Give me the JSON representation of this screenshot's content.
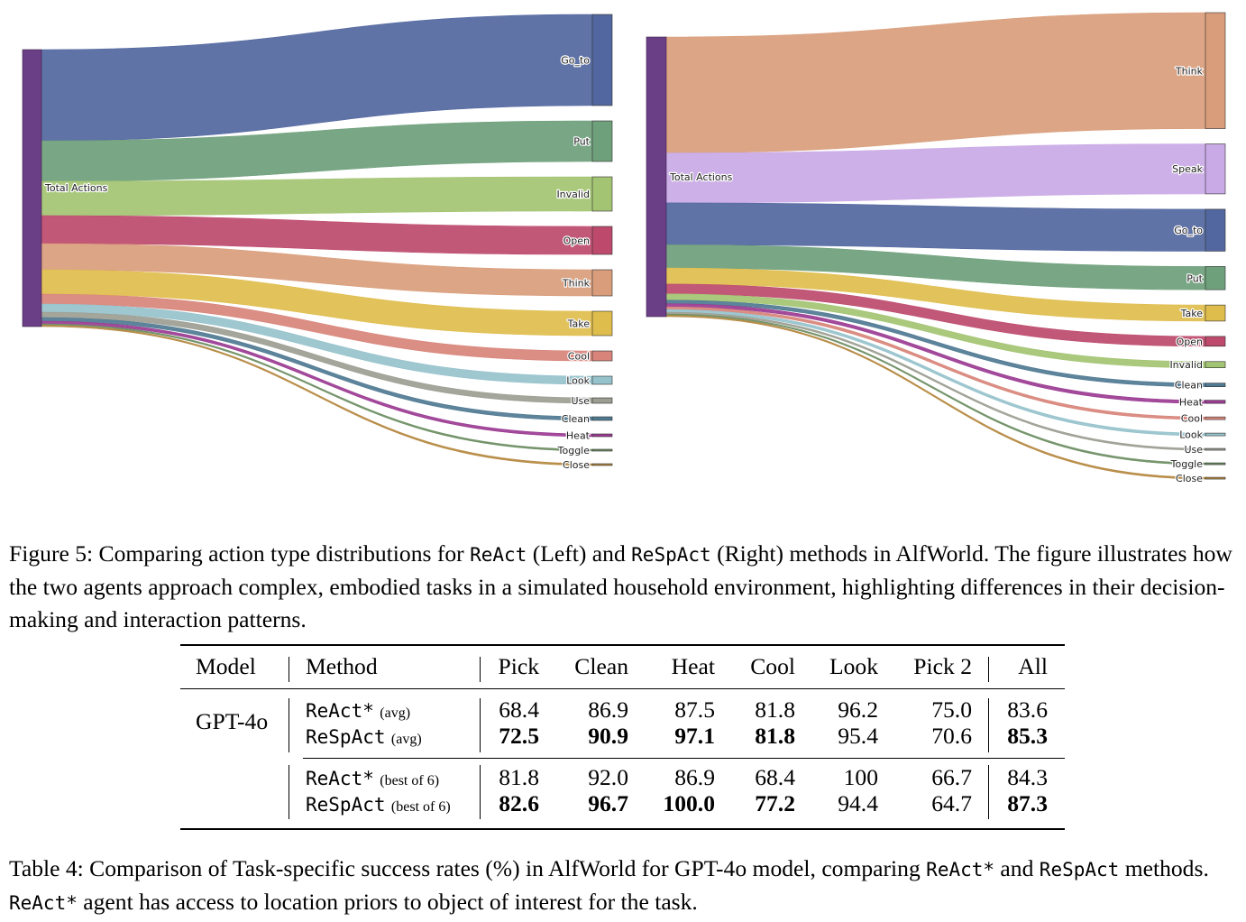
{
  "figure": {
    "left_panel": {
      "method": "ReAct",
      "source": "Total Actions",
      "color": "#6b3f86",
      "flows": [
        {
          "label": "Go_to",
          "value": 101,
          "color": "#52679f"
        },
        {
          "label": "Put",
          "value": 45,
          "color": "#6ea07b"
        },
        {
          "label": "Invalid",
          "value": 38,
          "color": "#a3c472"
        },
        {
          "label": "Open",
          "value": 31,
          "color": "#bd4a6d"
        },
        {
          "label": "Think",
          "value": 29,
          "color": "#d99d7b"
        },
        {
          "label": "Take",
          "value": 27,
          "color": "#dfbd4c"
        },
        {
          "label": "Cool",
          "value": 11,
          "color": "#d8847a"
        },
        {
          "label": "Look",
          "value": 9,
          "color": "#96c2cc"
        },
        {
          "label": "Use",
          "value": 6,
          "color": "#9c9e92"
        },
        {
          "label": "Clean",
          "value": 4,
          "color": "#4f7a92"
        },
        {
          "label": "Heat",
          "value": 3,
          "color": "#9b3b93"
        },
        {
          "label": "Toggle",
          "value": 1.5,
          "color": "#6d8e63"
        },
        {
          "label": "Close",
          "value": 1.5,
          "color": "#b58840"
        }
      ]
    },
    "right_panel": {
      "method": "ReSpAct",
      "source": "Total Actions",
      "color": "#6b3f86",
      "flows": [
        {
          "label": "Think",
          "value": 130,
          "color": "#d99d7b"
        },
        {
          "label": "Speak",
          "value": 56,
          "color": "#c9a9e6"
        },
        {
          "label": "Go_to",
          "value": 47,
          "color": "#52679f"
        },
        {
          "label": "Put",
          "value": 26,
          "color": "#6ea07b"
        },
        {
          "label": "Take",
          "value": 18,
          "color": "#dfbd4c"
        },
        {
          "label": "Open",
          "value": 11,
          "color": "#bd4a6d"
        },
        {
          "label": "Invalid",
          "value": 7,
          "color": "#a3c472"
        },
        {
          "label": "Clean",
          "value": 4,
          "color": "#4f7a92"
        },
        {
          "label": "Heat",
          "value": 3.5,
          "color": "#9b3b93"
        },
        {
          "label": "Cool",
          "value": 3,
          "color": "#d8847a"
        },
        {
          "label": "Look",
          "value": 3,
          "color": "#96c2cc"
        },
        {
          "label": "Use",
          "value": 2,
          "color": "#9c9e92"
        },
        {
          "label": "Toggle",
          "value": 1.5,
          "color": "#6d8e63"
        },
        {
          "label": "Close",
          "value": 1.5,
          "color": "#b58840"
        }
      ]
    }
  },
  "figure_caption": {
    "prefix": "Figure 5: Comparing action type distributions for ",
    "method_a": "ReAct",
    "middle": " (Left) and ",
    "method_b": "ReSpAct",
    "suffix": " (Right) methods in AlfWorld. The figure illustrates how the two agents approach complex, embodied tasks in a simulated household environment, highlighting differences in their decision-making and interaction patterns."
  },
  "table": {
    "headers": [
      "Model",
      "Method",
      "Pick",
      "Clean",
      "Heat",
      "Cool",
      "Look",
      "Pick 2",
      "All"
    ],
    "model": "GPT-4o",
    "rows": [
      {
        "method": "ReAct*",
        "note": "(avg)",
        "values": [
          "68.4",
          "86.9",
          "87.5",
          "81.8",
          "96.2",
          "75.0",
          "83.6"
        ]
      },
      {
        "method": "ReSpAct",
        "note": "(avg)",
        "values": [
          "72.5",
          "90.9",
          "97.1",
          "81.8",
          "95.4",
          "70.6",
          "85.3"
        ]
      },
      {
        "method": "ReAct*",
        "note": "(best of 6)",
        "values": [
          "81.8",
          "92.0",
          "86.9",
          "68.4",
          "100",
          "66.7",
          "84.3"
        ]
      },
      {
        "method": "ReSpAct",
        "note": "(best of 6)",
        "values": [
          "82.6",
          "96.7",
          "100.0",
          "77.2",
          "94.4",
          "64.7",
          "87.3"
        ]
      }
    ]
  },
  "table_caption": {
    "prefix": "Table 4: Comparison of Task-specific success rates (%) in AlfWorld for GPT-4o model, comparing ",
    "method_a": "ReAct*",
    "middle": " and ",
    "method_b": "ReSpAct",
    "mid2": " methods. ",
    "method_c": "ReAct*",
    "suffix": " agent has access to location priors to object of interest for the task."
  }
}
